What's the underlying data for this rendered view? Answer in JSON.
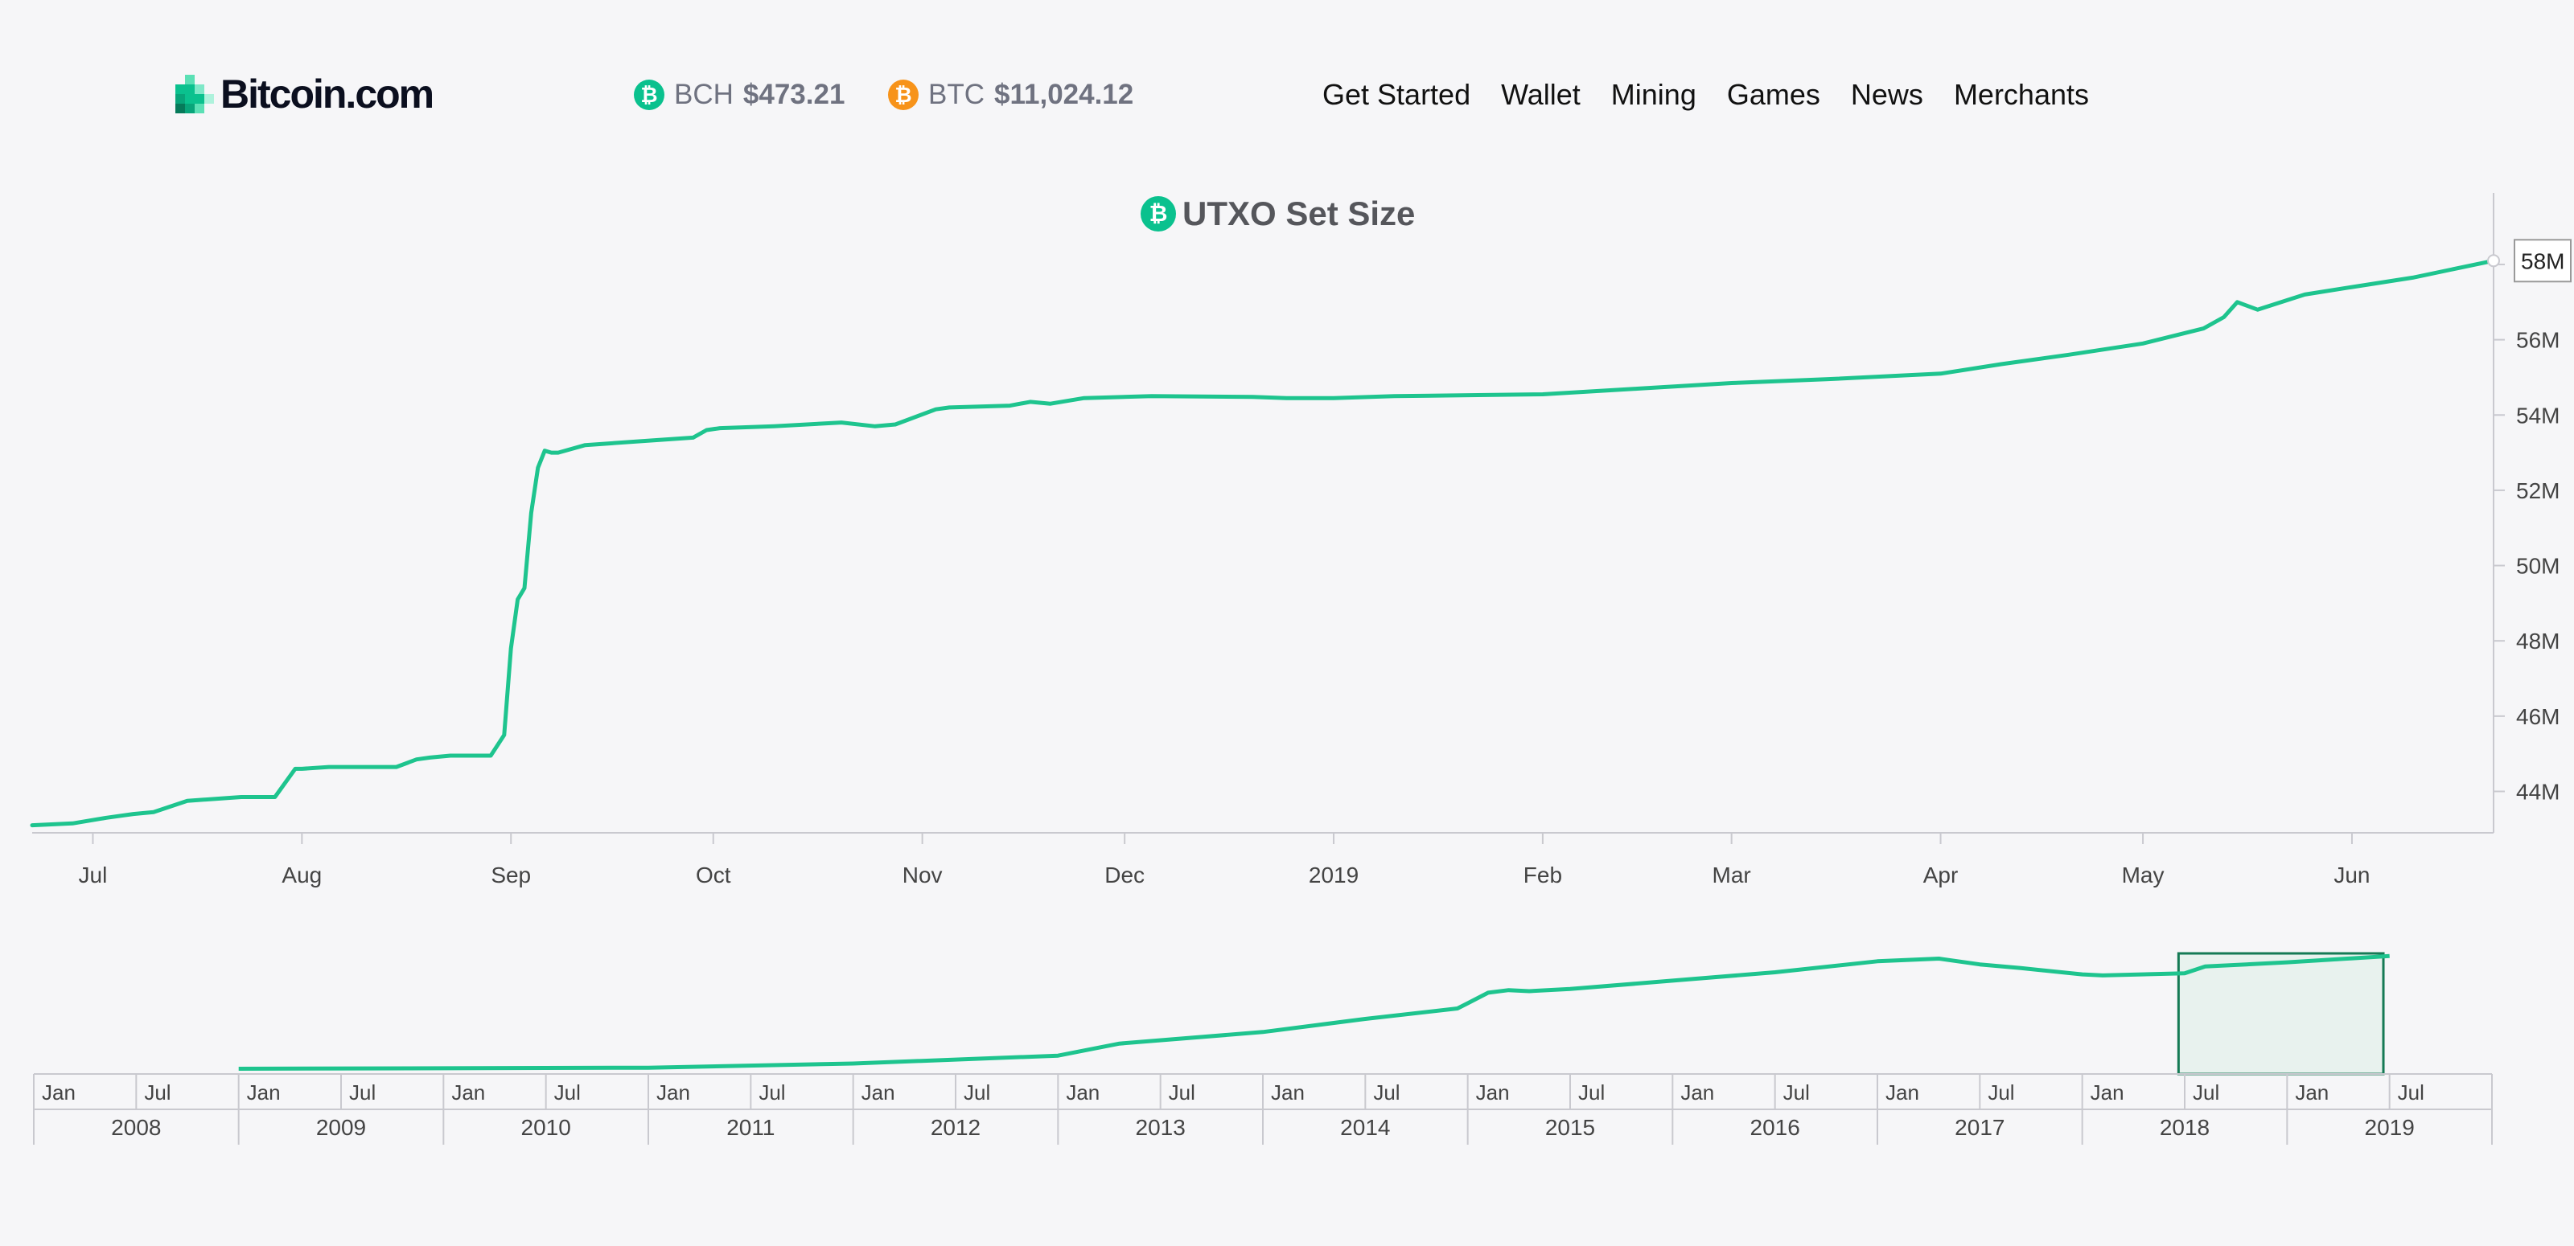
{
  "brand": {
    "name": "Bitcoin.com",
    "accent": "#0ac18e"
  },
  "ticker": [
    {
      "symbol": "BCH",
      "price": "$473.21",
      "icon": "bch-icon",
      "color": "#0ac18e"
    },
    {
      "symbol": "BTC",
      "price": "$11,024.12",
      "icon": "btc-icon",
      "color": "#f7931a"
    }
  ],
  "nav": [
    "Get Started",
    "Wallet",
    "Mining",
    "Games",
    "News",
    "Merchants"
  ],
  "chart_data": {
    "type": "line",
    "title": "UTXO Set Size",
    "title_icon": "bch-icon",
    "series": [
      {
        "color": "#1ec48e",
        "x": [
          "2018-06-22",
          "2018-06-28",
          "2018-07-03",
          "2018-07-07",
          "2018-07-10",
          "2018-07-15",
          "2018-07-19",
          "2018-07-23",
          "2018-07-28",
          "2018-07-31",
          "2018-08-01",
          "2018-08-05",
          "2018-08-15",
          "2018-08-18",
          "2018-08-20",
          "2018-08-23",
          "2018-08-29",
          "2018-08-31",
          "2018-09-01",
          "2018-09-02",
          "2018-09-03",
          "2018-09-04",
          "2018-09-05",
          "2018-09-06",
          "2018-09-07",
          "2018-09-08",
          "2018-09-12",
          "2018-09-20",
          "2018-09-28",
          "2018-09-30",
          "2018-10-02",
          "2018-10-10",
          "2018-10-20",
          "2018-10-25",
          "2018-10-28",
          "2018-11-03",
          "2018-11-05",
          "2018-11-14",
          "2018-11-17",
          "2018-11-20",
          "2018-11-25",
          "2018-12-05",
          "2018-12-20",
          "2018-12-25",
          "2019-01-01",
          "2019-01-10",
          "2019-02-01",
          "2019-02-15",
          "2019-03-01",
          "2019-03-15",
          "2019-04-01",
          "2019-04-10",
          "2019-04-20",
          "2019-05-01",
          "2019-05-10",
          "2019-05-13",
          "2019-05-15",
          "2019-05-18",
          "2019-05-25",
          "2019-06-01",
          "2019-06-10",
          "2019-06-22"
        ],
        "y": [
          43.1,
          43.15,
          43.3,
          43.4,
          43.45,
          43.75,
          43.8,
          43.85,
          43.85,
          44.6,
          44.6,
          44.65,
          44.65,
          44.85,
          44.9,
          44.95,
          44.95,
          45.5,
          47.8,
          49.1,
          49.4,
          51.4,
          52.6,
          53.05,
          53.0,
          53.0,
          53.2,
          53.3,
          53.4,
          53.6,
          53.65,
          53.7,
          53.8,
          53.7,
          53.75,
          54.15,
          54.2,
          54.25,
          54.35,
          54.3,
          54.45,
          54.5,
          54.48,
          54.45,
          54.45,
          54.5,
          54.55,
          54.7,
          54.85,
          54.95,
          55.1,
          55.35,
          55.6,
          55.9,
          56.3,
          56.6,
          57.0,
          56.8,
          57.2,
          57.4,
          57.65,
          58.1
        ]
      }
    ],
    "xaxis_ticks": [
      "Jul",
      "Aug",
      "Sep",
      "Oct",
      "Nov",
      "Dec",
      "2019",
      "Feb",
      "Mar",
      "Apr",
      "May",
      "Jun"
    ],
    "xaxis_tick_dates": [
      "2018-07-01",
      "2018-08-01",
      "2018-09-01",
      "2018-10-01",
      "2018-11-01",
      "2018-12-01",
      "2019-01-01",
      "2019-02-01",
      "2019-03-01",
      "2019-04-01",
      "2019-05-01",
      "2019-06-01"
    ],
    "ylim": [
      42.9,
      59.9
    ],
    "yticks": [
      44,
      46,
      48,
      50,
      52,
      54,
      56,
      58
    ],
    "ytick_labels": [
      "44M",
      "46M",
      "48M",
      "50M",
      "52M",
      "54M",
      "56M",
      "58M"
    ],
    "x_range": [
      "2018-06-22",
      "2019-06-22"
    ],
    "crosshair_label": "58M",
    "navigator": {
      "x": [
        2009.0,
        2011.0,
        2012.0,
        2013.0,
        2013.3,
        2014.0,
        2014.5,
        2014.95,
        2015.0,
        2015.1,
        2015.2,
        2015.3,
        2015.5,
        2016.0,
        2016.5,
        2017.0,
        2017.3,
        2017.5,
        2017.7,
        2018.0,
        2018.1,
        2018.5,
        2018.6,
        2019.0,
        2019.5
      ],
      "y": [
        0,
        0.2,
        1.0,
        2.5,
        4.8,
        7.0,
        9.5,
        11.5,
        12.5,
        14.5,
        15.0,
        14.8,
        15.2,
        16.8,
        18.4,
        20.5,
        21.0,
        19.9,
        19.2,
        18.0,
        17.8,
        18.2,
        19.5,
        20.3,
        21.5
      ],
      "ylim": [
        -1,
        22
      ],
      "xlim": [
        2008.0,
        2020.0
      ],
      "selected_range": [
        2018.47,
        2019.47
      ],
      "year_labels": [
        "2008",
        "2009",
        "2010",
        "2011",
        "2012",
        "2013",
        "2014",
        "2015",
        "2016",
        "2017",
        "2018",
        "2019"
      ],
      "half_labels": [
        "Jan",
        "Jul"
      ]
    },
    "grid": false
  }
}
